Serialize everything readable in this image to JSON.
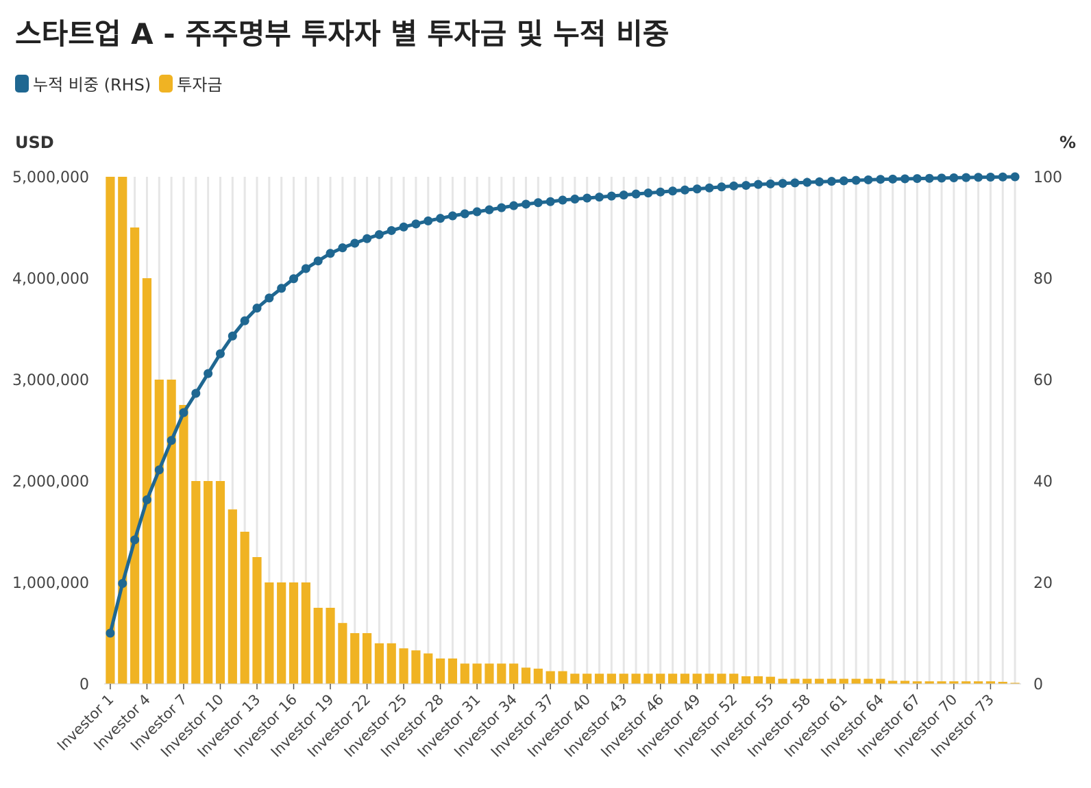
{
  "title": "스타트업 A - 주주명부 투자자 별 투자금 및 누적 비중",
  "legend": [
    {
      "label": "누적 비중 (RHS)",
      "color": "#1f6791",
      "icon": "circle-swatch"
    },
    {
      "label": "투자금",
      "color": "#f0b323",
      "icon": "square-swatch"
    }
  ],
  "colors": {
    "bar": "#f0b323",
    "line": "#1f6791",
    "grid": "#e6e6e6",
    "text": "#333333"
  },
  "chart_data": {
    "type": "bar+line",
    "ylabel_left": "USD",
    "ylabel_right": "%",
    "ylim_left": [
      0,
      5000000
    ],
    "ylim_right": [
      0,
      100
    ],
    "yticks_left": [
      "0",
      "1,000,000",
      "2,000,000",
      "3,000,000",
      "4,000,000",
      "5,000,000"
    ],
    "yticks_left_values": [
      0,
      1000000,
      2000000,
      3000000,
      4000000,
      5000000
    ],
    "yticks_right": [
      "0",
      "20",
      "40",
      "60",
      "80",
      "100"
    ],
    "yticks_right_values": [
      0,
      20,
      40,
      60,
      80,
      100
    ],
    "x_tick_labels": [
      "Investor 1",
      "Investor 4",
      "Investor 7",
      "Investor 10",
      "Investor 13",
      "Investor 16",
      "Investor 19",
      "Investor 22",
      "Investor 25",
      "Investor 28",
      "Investor 31",
      "Investor 34",
      "Investor 37",
      "Investor 40",
      "Investor 43",
      "Investor 46",
      "Investor 49",
      "Investor 52",
      "Investor 55",
      "Investor 58",
      "Investor 61",
      "Investor 64",
      "Investor 67",
      "Investor 70",
      "Investor 73"
    ],
    "x_tick_every": 3,
    "grid": "vertical",
    "series": [
      {
        "name": "투자금",
        "axis": "left",
        "type": "bar",
        "values": [
          5000000,
          5000000,
          4500000,
          4000000,
          3000000,
          3000000,
          2750000,
          2000000,
          2000000,
          2000000,
          1720000,
          1500000,
          1250000,
          1000000,
          1000000,
          1000000,
          1000000,
          750000,
          750000,
          600000,
          500000,
          500000,
          400000,
          400000,
          350000,
          330000,
          300000,
          250000,
          250000,
          200000,
          200000,
          200000,
          200000,
          200000,
          160000,
          150000,
          125000,
          125000,
          100000,
          100000,
          100000,
          100000,
          100000,
          100000,
          100000,
          100000,
          100000,
          100000,
          100000,
          100000,
          100000,
          100000,
          75000,
          75000,
          70000,
          50000,
          50000,
          50000,
          50000,
          50000,
          50000,
          50000,
          50000,
          50000,
          30000,
          30000,
          25000,
          25000,
          25000,
          25000,
          25000,
          25000,
          25000,
          20000,
          10000
        ]
      },
      {
        "name": "누적 비중 (RHS)",
        "axis": "right",
        "type": "line",
        "values": [
          10.0,
          19.8,
          28.4,
          36.3,
          42.2,
          48.0,
          53.5,
          57.3,
          61.2,
          65.1,
          68.6,
          71.6,
          74.1,
          76.1,
          78.0,
          79.9,
          81.9,
          83.4,
          84.9,
          86.0,
          86.9,
          87.8,
          88.6,
          89.4,
          90.1,
          90.7,
          91.3,
          91.8,
          92.3,
          92.7,
          93.1,
          93.5,
          93.9,
          94.3,
          94.6,
          94.9,
          95.1,
          95.4,
          95.6,
          95.8,
          96.0,
          96.2,
          96.4,
          96.6,
          96.8,
          97.0,
          97.2,
          97.4,
          97.6,
          97.8,
          98.0,
          98.2,
          98.3,
          98.5,
          98.6,
          98.7,
          98.8,
          98.9,
          99.0,
          99.1,
          99.2,
          99.3,
          99.4,
          99.5,
          99.55,
          99.6,
          99.65,
          99.7,
          99.75,
          99.8,
          99.85,
          99.9,
          99.93,
          99.97,
          100.0
        ]
      }
    ]
  }
}
